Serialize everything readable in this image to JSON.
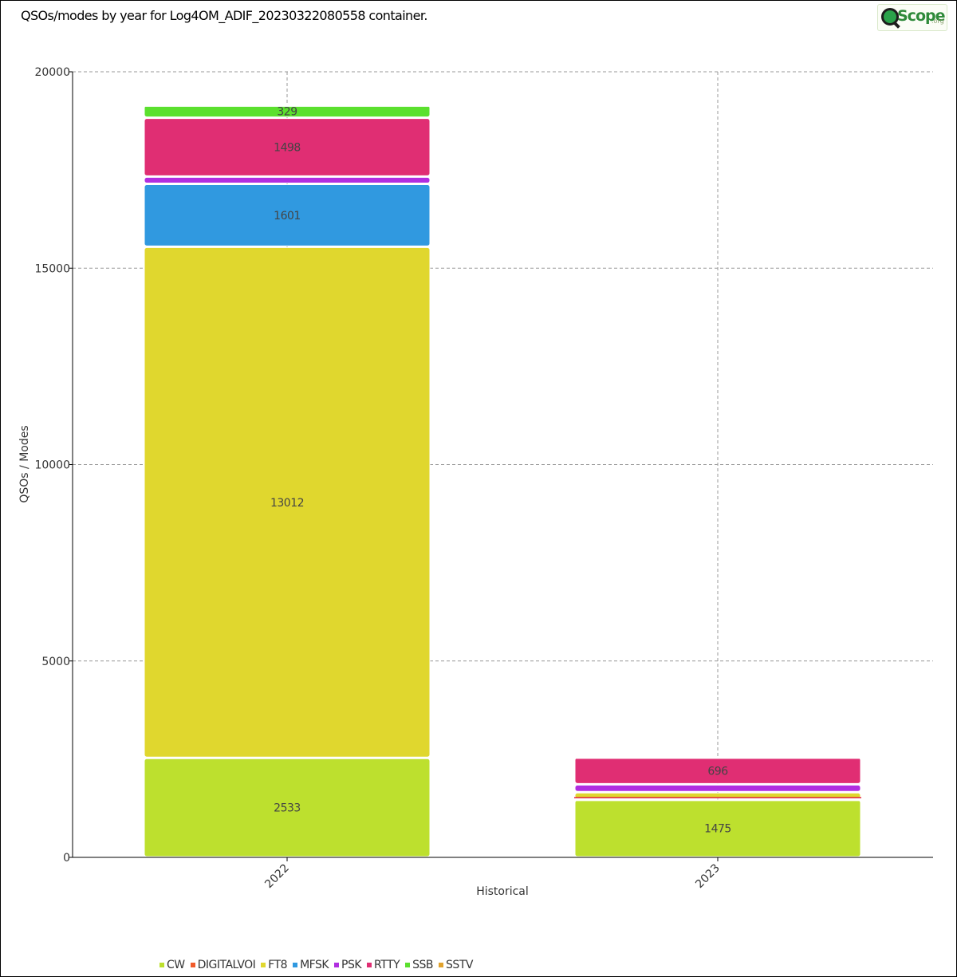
{
  "header": {
    "title": "QSOs/modes by year for Log4OM_ADIF_20230322080558 container.",
    "logo": {
      "word": "Scope",
      "suffix": ".org",
      "icon": "magnifier-globe-icon"
    }
  },
  "chart_data": {
    "type": "bar",
    "stacked": true,
    "categories": [
      "2022",
      "2023"
    ],
    "xlabel": "Historical",
    "ylabel": "QSOs / Modes",
    "ylim": [
      0,
      20000
    ],
    "yticks": [
      0,
      5000,
      10000,
      15000,
      20000
    ],
    "grid": true,
    "legend_position": "bottom-left",
    "series": [
      {
        "name": "CW",
        "color": "#bde02e",
        "values": [
          2533,
          1475
        ],
        "labels": [
          "2533",
          "1475"
        ]
      },
      {
        "name": "DIGITALVOI",
        "color": "#f05a2a",
        "values": [
          0,
          10
        ],
        "labels": [
          "",
          ""
        ]
      },
      {
        "name": "FT8",
        "color": "#e0d72e",
        "values": [
          13012,
          175
        ],
        "labels": [
          "13012",
          ""
        ]
      },
      {
        "name": "MFSK",
        "color": "#3099e0",
        "values": [
          1601,
          0
        ],
        "labels": [
          "1601",
          ""
        ]
      },
      {
        "name": "PSK",
        "color": "#b02ee0",
        "values": [
          186,
          200
        ],
        "labels": [
          "",
          ""
        ]
      },
      {
        "name": "RTTY",
        "color": "#e02e73",
        "values": [
          1498,
          696
        ],
        "labels": [
          "1498",
          "696"
        ]
      },
      {
        "name": "SSB",
        "color": "#5be02e",
        "values": [
          329,
          5
        ],
        "labels": [
          "329",
          ""
        ]
      },
      {
        "name": "SSTV",
        "color": "#e0a22e",
        "values": [
          2,
          2
        ],
        "labels": [
          "",
          ""
        ]
      }
    ],
    "lines": [
      {
        "category": "2023",
        "value": 1520,
        "color": "#e0203a"
      }
    ]
  }
}
